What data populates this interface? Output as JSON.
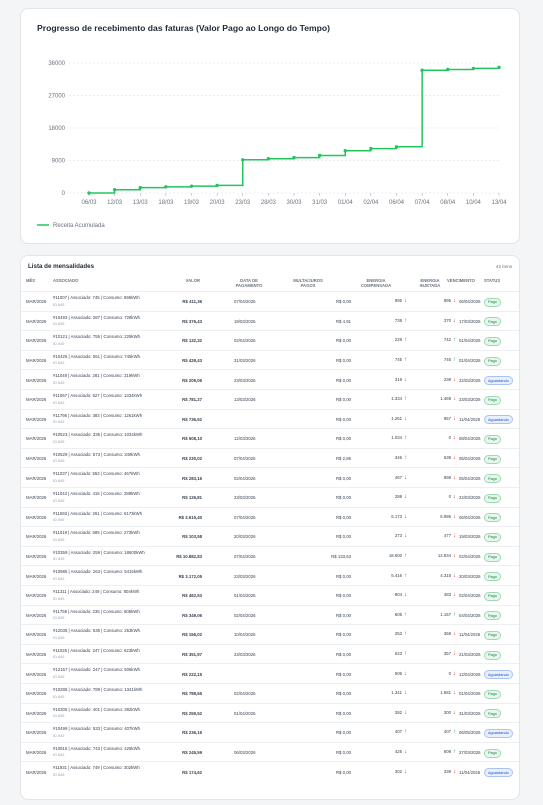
{
  "colors": {
    "accent": "#22c55e",
    "paid": "#15803d",
    "waiting": "#1d4ed8"
  },
  "chart_data": {
    "type": "line",
    "title": "Progresso de recebimento das faturas (Valor Pago ao Longo do Tempo)",
    "xlabel": "",
    "ylabel": "",
    "ylim": [
      0,
      36000
    ],
    "yticks": [
      "0",
      "9000",
      "18000",
      "27000",
      "36000"
    ],
    "x_ticks": [
      "06/03",
      "12/03",
      "13/03",
      "18/03",
      "19/03",
      "20/03",
      "23/03",
      "28/03",
      "30/03",
      "31/03",
      "01/04",
      "02/04",
      "06/04",
      "07/04",
      "08/04",
      "10/04",
      "13/04"
    ],
    "grid": true,
    "legend_position": "bottom-left",
    "series": [
      {
        "name": "Receita Acumulada",
        "values": [
          0,
          900,
          1500,
          1700,
          1900,
          2100,
          9200,
          9500,
          9800,
          10400,
          11700,
          12300,
          12800,
          34000,
          34200,
          34500,
          34800
        ]
      }
    ]
  },
  "table": {
    "title": "Lista de mensalidades",
    "count": "42 itens",
    "headers": {
      "mes": "MÊS",
      "associado": "ASSOCIADO",
      "valor": "VALOR",
      "data1": "DATA DE",
      "data2": "PAGAMENTO",
      "multa1": "MULTA/JUROS",
      "multa2": "PAGOS",
      "energia1": "ENERGIA",
      "energia2": "COMPENSADA",
      "injetada1": "ENERGIA",
      "injetada2": "INJETADA",
      "venc": "VENCIMENTO",
      "status": "STATUS"
    },
    "rows": [
      {
        "mes": "MAR/2026",
        "assoc": "#11007 | Associado: 745 | Consumo: 895kWh",
        "id": "ID 845",
        "valor": "R$ 411,36",
        "data": "07/04/2026",
        "multa": "R$ 0,00",
        "energia": "895",
        "e_dir": "down",
        "injetada": "895",
        "i_dir": "down",
        "venc": "06/04/2026",
        "status": "Pago"
      },
      {
        "mes": "MAR/2026",
        "assoc": "#10493 | Associado: 287 | Consumo: 728kWh",
        "id": "ID 845",
        "valor": "R$ 376,43",
        "data": "19/03/2026",
        "multa": "R$ 4,91",
        "energia": "738",
        "e_dir": "up",
        "injetada": "370",
        "i_dir": "down",
        "venc": "17/03/2026",
        "status": "Pago"
      },
      {
        "mes": "MAR/2026",
        "assoc": "#10121 | Associado: 755 | Consumo: 229kWh",
        "id": "ID 845",
        "valor": "R$ 132,32",
        "data": "02/04/2026",
        "multa": "R$ 0,00",
        "energia": "229",
        "e_dir": "up",
        "injetada": "742",
        "i_dir": "up",
        "venc": "01/04/2026",
        "status": "Pago"
      },
      {
        "mes": "MAR/2026",
        "assoc": "#10425 | Associado: 551 | Consumo: 745kWh",
        "id": "ID 845",
        "valor": "R$ 429,43",
        "data": "31/03/2026",
        "multa": "R$ 0,00",
        "energia": "745",
        "e_dir": "up",
        "injetada": "745",
        "i_dir": "up",
        "venc": "01/04/2026",
        "status": "Pago"
      },
      {
        "mes": "MAR/2026",
        "assoc": "#11049 | Associado: 281 | Consumo: 319kWh",
        "id": "ID 845",
        "valor": "R$ 209,06",
        "data": "23/03/2026",
        "multa": "R$ 0,00",
        "energia": "319",
        "e_dir": "down",
        "injetada": "238",
        "i_dir": "down",
        "venc": "22/03/2026",
        "status": "Aguardando"
      },
      {
        "mes": "MAR/2026",
        "assoc": "#11067 | Associado: 527 | Consumo: 1334kWh",
        "id": "ID 845",
        "valor": "R$ 781,27",
        "data": "13/03/2026",
        "multa": "R$ 0,00",
        "energia": "1.334",
        "e_dir": "up",
        "injetada": "1.469",
        "i_dir": "down",
        "venc": "23/03/2026",
        "status": "Pago"
      },
      {
        "mes": "MAR/2026",
        "assoc": "#11795 | Associado: 383 | Consumo: 1261kWh",
        "id": "ID 845",
        "valor": "R$ 736,52",
        "data": "",
        "multa": "R$ 0,00",
        "energia": "1.261",
        "e_dir": "down",
        "injetada": "957",
        "i_dir": "down",
        "venc": "11/04/2026",
        "status": "Aguardando"
      },
      {
        "mes": "MAR/2026",
        "assoc": "#10523 | Associado: 335 | Consumo: 1034kWh",
        "id": "ID 845",
        "valor": "R$ 608,10",
        "data": "12/03/2026",
        "multa": "R$ 0,00",
        "energia": "1.034",
        "e_dir": "up",
        "injetada": "0",
        "i_dir": "down",
        "venc": "08/04/2026",
        "status": "Pago"
      },
      {
        "mes": "MAR/2026",
        "assoc": "#10529 | Associado: 573 | Consumo: 349kWh",
        "id": "ID 845",
        "valor": "R$ 230,02",
        "data": "07/04/2026",
        "multa": "R$ 2,86",
        "energia": "346",
        "e_dir": "up",
        "injetada": "638",
        "i_dir": "down",
        "venc": "05/04/2026",
        "status": "Pago"
      },
      {
        "mes": "MAR/2026",
        "assoc": "#11037 | Associado: 553 | Consumo: 467kWh",
        "id": "ID 845",
        "valor": "R$ 283,16",
        "data": "02/04/2026",
        "multa": "R$ 0,00",
        "energia": "467",
        "e_dir": "down",
        "injetada": "898",
        "i_dir": "down",
        "venc": "05/04/2026",
        "status": "Pago"
      },
      {
        "mes": "MAR/2026",
        "assoc": "#11043 | Associado: 415 | Consumo: 288kWh",
        "id": "ID 845",
        "valor": "R$ 126,81",
        "data": "23/03/2026",
        "multa": "R$ 0,00",
        "energia": "288",
        "e_dir": "down",
        "injetada": "0",
        "i_dir": "down",
        "venc": "22/03/2026",
        "status": "Pago"
      },
      {
        "mes": "MAR/2026",
        "assoc": "#11693 | Associado: 261 | Consumo: 6173kWh",
        "id": "ID 845",
        "valor": "R$ 3.615,40",
        "data": "07/04/2026",
        "multa": "R$ 0,00",
        "energia": "6.173",
        "e_dir": "down",
        "injetada": "5.986",
        "i_dir": "down",
        "venc": "06/04/2026",
        "status": "Pago"
      },
      {
        "mes": "MAR/2026",
        "assoc": "#11019 | Associado: 685 | Consumo: 273kWh",
        "id": "ID 845",
        "valor": "R$ 103,58",
        "data": "20/03/2026",
        "multa": "R$ 0,00",
        "energia": "273",
        "e_dir": "down",
        "injetada": "477",
        "i_dir": "down",
        "venc": "19/03/2026",
        "status": "Pago"
      },
      {
        "mes": "MAR/2026",
        "assoc": "#10359 | Associado: 259 | Consumo: 18600kWh",
        "id": "ID 845",
        "valor": "R$ 10.882,83",
        "data": "07/04/2026",
        "multa": "R$ 133,63",
        "energia": "18.600",
        "e_dir": "up",
        "injetada": "12.834",
        "i_dir": "down",
        "venc": "02/04/2026",
        "status": "Pago"
      },
      {
        "mes": "MAR/2026",
        "assoc": "#10985 | Associado: 263 | Consumo: 5416kWh",
        "id": "ID 845",
        "valor": "R$ 3.172,05",
        "data": "23/03/2026",
        "multa": "R$ 0,00",
        "energia": "5.416",
        "e_dir": "up",
        "injetada": "4.318",
        "i_dir": "down",
        "venc": "20/03/2026",
        "status": "Pago"
      },
      {
        "mes": "MAR/2026",
        "assoc": "#11311 | Associado: 249 | Consumo: 804kWh",
        "id": "ID 845",
        "valor": "R$ 462,53",
        "data": "01/04/2026",
        "multa": "R$ 0,00",
        "energia": "804",
        "e_dir": "down",
        "injetada": "483",
        "i_dir": "down",
        "venc": "02/04/2026",
        "status": "Pago"
      },
      {
        "mes": "MAR/2026",
        "assoc": "#11759 | Associado: 235 | Consumo: 605kWh",
        "id": "ID 845",
        "valor": "R$ 349,06",
        "data": "02/04/2026",
        "multa": "R$ 0,00",
        "energia": "605",
        "e_dir": "up",
        "injetada": "1.157",
        "i_dir": "up",
        "venc": "04/04/2026",
        "status": "Pago"
      },
      {
        "mes": "MAR/2026",
        "assoc": "#12035 | Associado: 535 | Consumo: 253kWh",
        "id": "ID 845",
        "valor": "R$ 156,02",
        "data": "10/04/2026",
        "multa": "R$ 0,00",
        "energia": "253",
        "e_dir": "up",
        "injetada": "368",
        "i_dir": "down",
        "venc": "11/04/2026",
        "status": "Pago"
      },
      {
        "mes": "MAR/2026",
        "assoc": "#11025 | Associado: 247 | Consumo: 623kWh",
        "id": "ID 845",
        "valor": "R$ 351,97",
        "data": "23/03/2026",
        "multa": "R$ 0,00",
        "energia": "623",
        "e_dir": "up",
        "injetada": "357",
        "i_dir": "down",
        "venc": "21/03/2026",
        "status": "Pago"
      },
      {
        "mes": "MAR/2026",
        "assoc": "#12157 | Associado: 247 | Consumo: 506kWh",
        "id": "ID 845",
        "valor": "R$ 222,15",
        "data": "",
        "multa": "R$ 0,00",
        "energia": "506",
        "e_dir": "down",
        "injetada": "0",
        "i_dir": "down",
        "venc": "12/04/2026",
        "status": "Aguardando"
      },
      {
        "mes": "MAR/2026",
        "assoc": "#10285 | Associado: 789 | Consumo: 1341kWh",
        "id": "ID 845",
        "valor": "R$ 788,65",
        "data": "02/04/2026",
        "multa": "R$ 0,00",
        "energia": "1.341",
        "e_dir": "down",
        "injetada": "1.681",
        "i_dir": "down",
        "venc": "01/04/2026",
        "status": "Pago"
      },
      {
        "mes": "MAR/2026",
        "assoc": "#10305 | Associado: 401 | Consumo: 392kWh",
        "id": "ID 845",
        "valor": "R$ 259,52",
        "data": "01/04/2026",
        "multa": "R$ 0,00",
        "energia": "392",
        "e_dir": "down",
        "injetada": "300",
        "i_dir": "down",
        "venc": "31/03/2026",
        "status": "Pago"
      },
      {
        "mes": "MAR/2026",
        "assoc": "#10499 | Associado: 533 | Consumo: 407kWh",
        "id": "ID 845",
        "valor": "R$ 236,16",
        "data": "",
        "multa": "R$ 0,00",
        "energia": "407",
        "e_dir": "up",
        "injetada": "407",
        "i_dir": "up",
        "venc": "06/05/2026",
        "status": "Aguardando"
      },
      {
        "mes": "MAR/2026",
        "assoc": "#10815 | Associado: 743 | Consumo: 425kWh",
        "id": "ID 845",
        "valor": "R$ 245,59",
        "data": "06/03/2026",
        "multa": "R$ 0,00",
        "energia": "425",
        "e_dir": "down",
        "injetada": "609",
        "i_dir": "up",
        "venc": "27/03/2026",
        "status": "Pago"
      },
      {
        "mes": "MAR/2026",
        "assoc": "#11931 | Associado: 749 | Consumo: 302kWh",
        "id": "ID 845",
        "valor": "R$ 174,62",
        "data": "",
        "multa": "R$ 0,00",
        "energia": "302",
        "e_dir": "down",
        "injetada": "339",
        "i_dir": "down",
        "venc": "11/04/2026",
        "status": "Aguardando"
      }
    ]
  }
}
